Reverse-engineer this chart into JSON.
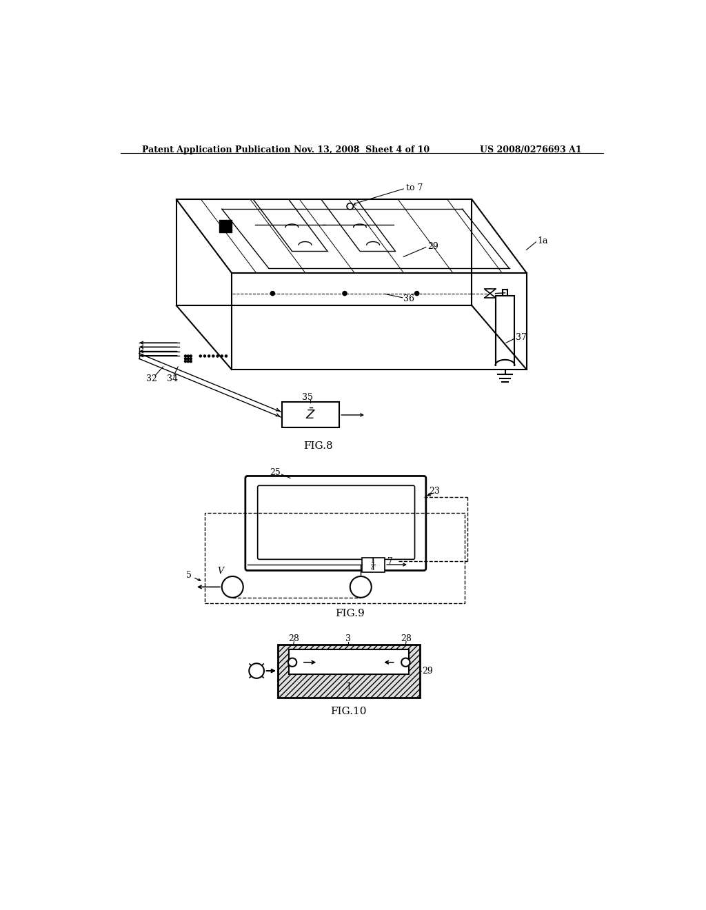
{
  "bg_color": "#ffffff",
  "text_color": "#000000",
  "header_left": "Patent Application Publication",
  "header_mid": "Nov. 13, 2008  Sheet 4 of 10",
  "header_right": "US 2008/0276693 A1",
  "fig8_label": "FIG.8",
  "fig9_label": "FIG.9",
  "fig10_label": "FIG.10"
}
